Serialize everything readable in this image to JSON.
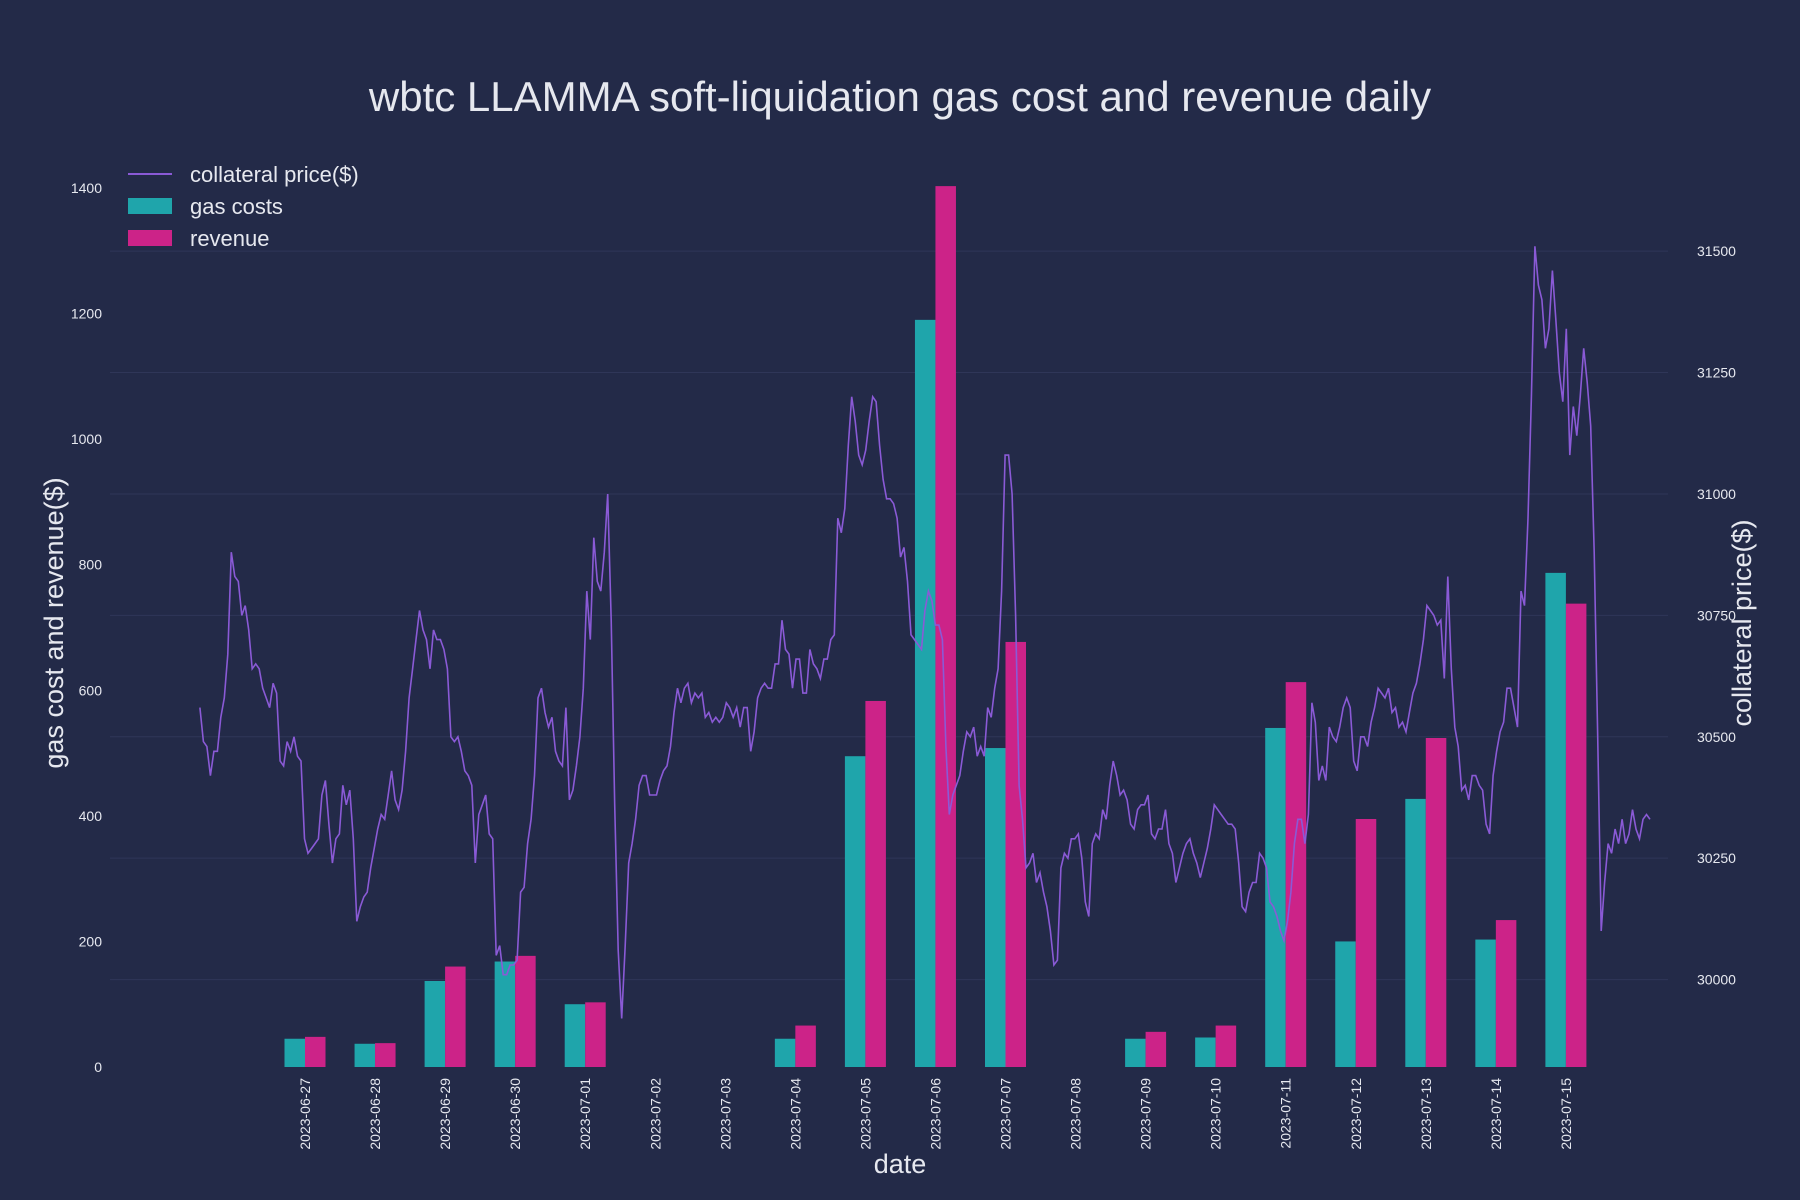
{
  "chart_data": {
    "type": "bar",
    "title": "wbtc LLAMMA soft-liquidation gas cost and revenue daily",
    "xlabel": "date",
    "ylabel": "gas cost and revenue($)",
    "y2label": "collateral price($)",
    "categories": [
      "2023-06-27",
      "2023-06-28",
      "2023-06-29",
      "2023-06-30",
      "2023-07-01",
      "2023-07-02",
      "2023-07-03",
      "2023-07-04",
      "2023-07-05",
      "2023-07-06",
      "2023-07-07",
      "2023-07-08",
      "2023-07-09",
      "2023-07-10",
      "2023-07-11",
      "2023-07-12",
      "2023-07-13",
      "2023-07-14",
      "2023-07-15"
    ],
    "ylim": [
      0,
      1400
    ],
    "y2lim": [
      29820,
      31630
    ],
    "yticks": [
      0,
      200,
      400,
      600,
      800,
      1000,
      1200,
      1400
    ],
    "y2ticks": [
      30000,
      30250,
      30500,
      30750,
      31000,
      31250,
      31500
    ],
    "series": [
      {
        "name": "gas costs",
        "color": "#1fa5ab",
        "values": [
          45,
          37,
          137,
          168,
          100,
          0,
          0,
          45,
          495,
          1190,
          508,
          0,
          45,
          47,
          540,
          200,
          427,
          203,
          787
        ]
      },
      {
        "name": "revenue",
        "color": "#cc2388",
        "values": [
          48,
          38,
          160,
          177,
          103,
          0,
          0,
          66,
          583,
          1403,
          677,
          0,
          56,
          66,
          613,
          395,
          524,
          234,
          738
        ]
      }
    ],
    "line": {
      "name": "collateral price($)",
      "color": "#8a5ad6",
      "day_start": -1.5,
      "day_end": 19.2,
      "values": [
        30560,
        30490,
        30480,
        30420,
        30470,
        30470,
        30540,
        30580,
        30670,
        30880,
        30830,
        30820,
        30750,
        30770,
        30720,
        30640,
        30650,
        30640,
        30600,
        30580,
        30560,
        30610,
        30590,
        30450,
        30440,
        30490,
        30470,
        30500,
        30460,
        30450,
        30290,
        30260,
        30270,
        30280,
        30290,
        30380,
        30410,
        30320,
        30240,
        30290,
        30300,
        30400,
        30360,
        30390,
        30290,
        30120,
        30150,
        30170,
        30180,
        30230,
        30270,
        30310,
        30340,
        30330,
        30380,
        30430,
        30370,
        30350,
        30390,
        30470,
        30580,
        30640,
        30700,
        30760,
        30720,
        30700,
        30640,
        30720,
        30700,
        30700,
        30680,
        30640,
        30500,
        30490,
        30500,
        30470,
        30430,
        30420,
        30400,
        30240,
        30340,
        30360,
        30380,
        30300,
        30290,
        30050,
        30070,
        30010,
        30010,
        30030,
        30030,
        30040,
        30180,
        30190,
        30280,
        30330,
        30420,
        30580,
        30600,
        30550,
        30520,
        30540,
        30470,
        30450,
        30440,
        30560,
        30370,
        30390,
        30440,
        30500,
        30600,
        30800,
        30700,
        30910,
        30820,
        30800,
        30880,
        31000,
        30740,
        30360,
        30060,
        29920,
        30070,
        30240,
        30280,
        30330,
        30400,
        30420,
        30420,
        30380,
        30380,
        30380,
        30410,
        30430,
        30440,
        30480,
        30550,
        30600,
        30570,
        30600,
        30610,
        30570,
        30590,
        30580,
        30590,
        30540,
        30550,
        30530,
        30540,
        30530,
        30540,
        30570,
        30560,
        30540,
        30560,
        30520,
        30560,
        30560,
        30470,
        30510,
        30580,
        30600,
        30610,
        30600,
        30600,
        30650,
        30650,
        30740,
        30680,
        30670,
        30600,
        30660,
        30660,
        30590,
        30590,
        30680,
        30650,
        30640,
        30620,
        30660,
        30660,
        30700,
        30710,
        30950,
        30920,
        30970,
        31100,
        31200,
        31150,
        31080,
        31060,
        31090,
        31150,
        31200,
        31190,
        31100,
        31030,
        30990,
        30990,
        30980,
        30950,
        30870,
        30890,
        30820,
        30710,
        30700,
        30690,
        30680,
        30760,
        30800,
        30780,
        30730,
        30730,
        30700,
        30480,
        30340,
        30380,
        30400,
        30420,
        30470,
        30510,
        30500,
        30520,
        30460,
        30480,
        30460,
        30560,
        30540,
        30600,
        30640,
        30800,
        31080,
        31080,
        31000,
        30750,
        30400,
        30330,
        30230,
        30240,
        30260,
        30200,
        30220,
        30180,
        30150,
        30100,
        30030,
        30040,
        30230,
        30260,
        30250,
        30290,
        30290,
        30300,
        30250,
        30160,
        30130,
        30280,
        30300,
        30290,
        30350,
        30330,
        30400,
        30450,
        30420,
        30380,
        30390,
        30370,
        30320,
        30310,
        30350,
        30360,
        30360,
        30380,
        30300,
        30290,
        30310,
        30310,
        30350,
        30280,
        30260,
        30200,
        30230,
        30260,
        30280,
        30290,
        30260,
        30240,
        30210,
        30240,
        30270,
        30310,
        30360,
        30350,
        30340,
        30330,
        30320,
        30320,
        30310,
        30240,
        30150,
        30140,
        30180,
        30200,
        30200,
        30260,
        30250,
        30230,
        30160,
        30150,
        30130,
        30100,
        30080,
        30120,
        30180,
        30280,
        30330,
        30330,
        30280,
        30340,
        30570,
        30530,
        30410,
        30440,
        30410,
        30520,
        30500,
        30490,
        30520,
        30560,
        30580,
        30560,
        30450,
        30430,
        30500,
        30500,
        30480,
        30530,
        30560,
        30600,
        30590,
        30580,
        30600,
        30550,
        30560,
        30520,
        30530,
        30510,
        30550,
        30590,
        30610,
        30650,
        30700,
        30770,
        30760,
        30750,
        30730,
        30740,
        30620,
        30830,
        30640,
        30520,
        30480,
        30390,
        30400,
        30370,
        30420,
        30420,
        30400,
        30390,
        30320,
        30300,
        30420,
        30470,
        30510,
        30530,
        30600,
        30600,
        30560,
        30520,
        30800,
        30770,
        30950,
        31200,
        31510,
        31430,
        31400,
        31300,
        31340,
        31460,
        31360,
        31250,
        31190,
        31340,
        31080,
        31180,
        31120,
        31200,
        31300,
        31230,
        31140,
        30880,
        30500,
        30100,
        30200,
        30280,
        30260,
        30310,
        30280,
        30330,
        30280,
        30300,
        30350,
        30310,
        30290,
        30330,
        30340,
        30330
      ]
    }
  }
}
